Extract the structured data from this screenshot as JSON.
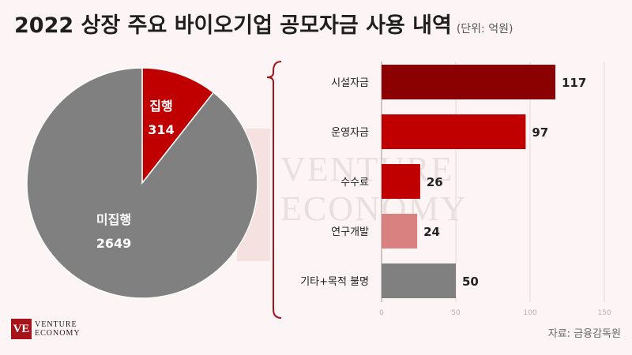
{
  "title": "2022 상장 주요 바이오기업 공모자금 사용 내역",
  "unit": "(단위: 억원)",
  "source": "자료: 금융감독원",
  "watermark": [
    "VENTURE",
    "ECONOMY"
  ],
  "logo": {
    "mark": "VE",
    "line1": "VENTURE",
    "line2": "ECONOMY"
  },
  "chart_data": [
    {
      "type": "pie",
      "slices": [
        {
          "label": "집행",
          "value": 314,
          "color": "#c00000"
        },
        {
          "label": "미집행",
          "value": 2649,
          "color": "#808080"
        }
      ]
    },
    {
      "type": "bar",
      "orientation": "horizontal",
      "categories": [
        "시설자금",
        "운영자금",
        "수수료",
        "연구개발",
        "기타+목적 불명"
      ],
      "values": [
        117,
        97,
        26,
        24,
        50
      ],
      "colors": [
        "#8b0000",
        "#c00000",
        "#c00000",
        "#d98080",
        "#808080"
      ],
      "xlim": [
        0,
        150
      ],
      "xticks": [
        0,
        50,
        100,
        150
      ],
      "grid": true
    }
  ]
}
